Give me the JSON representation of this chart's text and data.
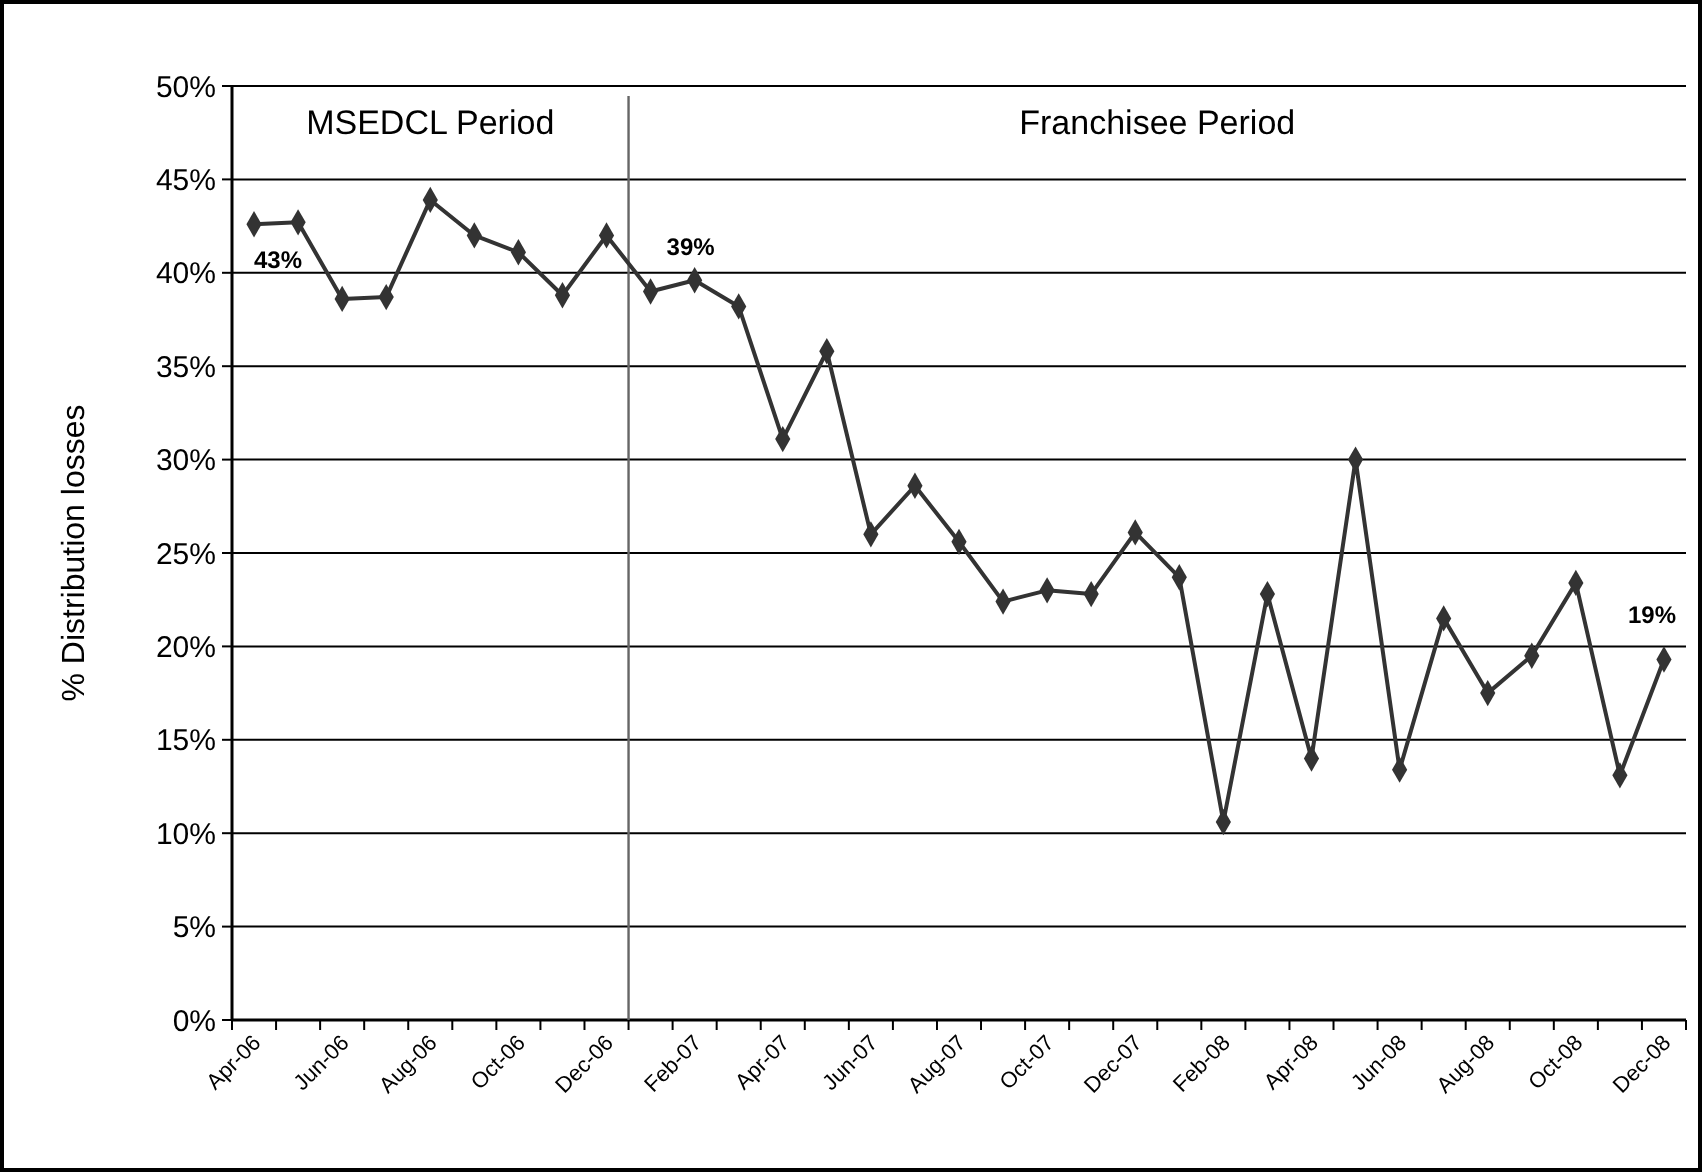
{
  "chart_data": {
    "type": "line",
    "ylabel": "% Distribution losses",
    "categories": [
      "Apr-06",
      null,
      "Jun-06",
      null,
      "Aug-06",
      null,
      "Oct-06",
      null,
      "Dec-06",
      null,
      "Feb-07",
      null,
      "Apr-07",
      null,
      "Jun-07",
      null,
      "Aug-07",
      null,
      "Oct-07",
      null,
      "Dec-07",
      null,
      "Feb-08",
      null,
      "Apr-08",
      null,
      "Jun-08",
      null,
      "Aug-08",
      null,
      "Oct-08",
      null,
      "Dec-08"
    ],
    "series": [
      {
        "color": "#333333",
        "values": [
          42.6,
          42.7,
          38.6,
          38.7,
          43.9,
          42.0,
          41.1,
          38.8,
          42.0,
          39.0,
          39.6,
          38.2,
          31.1,
          35.8,
          26.0,
          28.6,
          25.6,
          22.4,
          23.0,
          22.8,
          26.1,
          23.7,
          10.6,
          22.8,
          14.0,
          30.0,
          13.4,
          21.5,
          17.5,
          19.5,
          23.4,
          13.1,
          19.3
        ],
        "value_labels": [
          "43%",
          null,
          null,
          null,
          null,
          null,
          null,
          null,
          null,
          "39%",
          null,
          null,
          null,
          null,
          null,
          null,
          null,
          null,
          null,
          null,
          null,
          null,
          null,
          null,
          null,
          null,
          null,
          null,
          null,
          null,
          null,
          null,
          "19%"
        ]
      }
    ],
    "ylim": [
      0,
      50
    ],
    "yticks": [
      {
        "value": 0,
        "label": "0%"
      },
      {
        "value": 5,
        "label": "5%"
      },
      {
        "value": 10,
        "label": "10%"
      },
      {
        "value": 15,
        "label": "15%"
      },
      {
        "value": 20,
        "label": "20%"
      },
      {
        "value": 25,
        "label": "25%"
      },
      {
        "value": 30,
        "label": "30%"
      },
      {
        "value": 35,
        "label": "35%"
      },
      {
        "value": 40,
        "label": "40%"
      },
      {
        "value": 45,
        "label": "45%"
      },
      {
        "value": 50,
        "label": "50%"
      }
    ],
    "grid": "y",
    "marker": "diamond",
    "line_style": "solid",
    "ref_lines": [
      {
        "axis": "x",
        "value": "Dec-06",
        "color": "#666666"
      }
    ],
    "annotations": [
      "MSEDCL Period",
      "Franchisee Period"
    ]
  }
}
